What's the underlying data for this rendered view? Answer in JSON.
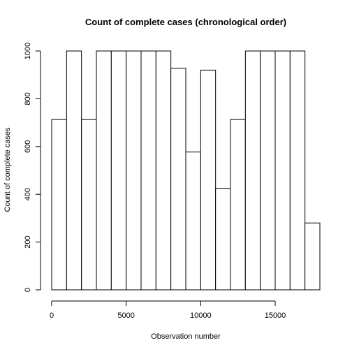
{
  "chart_data": {
    "type": "bar",
    "title": "Count of complete cases (chronological order)",
    "xlabel": "Observation number",
    "ylabel": "Count of complete cases",
    "xlim": [
      0,
      18000
    ],
    "ylim": [
      0,
      1000
    ],
    "x_ticks": [
      0,
      5000,
      10000,
      15000
    ],
    "y_ticks": [
      0,
      200,
      400,
      600,
      800,
      1000
    ],
    "bin_width": 1000,
    "bins": [
      {
        "start": 0,
        "end": 1000,
        "value": 713
      },
      {
        "start": 1000,
        "end": 2000,
        "value": 1000
      },
      {
        "start": 2000,
        "end": 3000,
        "value": 713
      },
      {
        "start": 3000,
        "end": 4000,
        "value": 1000
      },
      {
        "start": 4000,
        "end": 5000,
        "value": 1000
      },
      {
        "start": 5000,
        "end": 6000,
        "value": 1000
      },
      {
        "start": 6000,
        "end": 7000,
        "value": 1000
      },
      {
        "start": 7000,
        "end": 8000,
        "value": 1000
      },
      {
        "start": 8000,
        "end": 9000,
        "value": 928
      },
      {
        "start": 9000,
        "end": 10000,
        "value": 577
      },
      {
        "start": 10000,
        "end": 11000,
        "value": 920
      },
      {
        "start": 11000,
        "end": 12000,
        "value": 425
      },
      {
        "start": 12000,
        "end": 13000,
        "value": 713
      },
      {
        "start": 13000,
        "end": 14000,
        "value": 1000
      },
      {
        "start": 14000,
        "end": 15000,
        "value": 1000
      },
      {
        "start": 15000,
        "end": 16000,
        "value": 1000
      },
      {
        "start": 16000,
        "end": 17000,
        "value": 1000
      },
      {
        "start": 17000,
        "end": 18000,
        "value": 280
      }
    ],
    "grid": false,
    "legend": "none"
  }
}
